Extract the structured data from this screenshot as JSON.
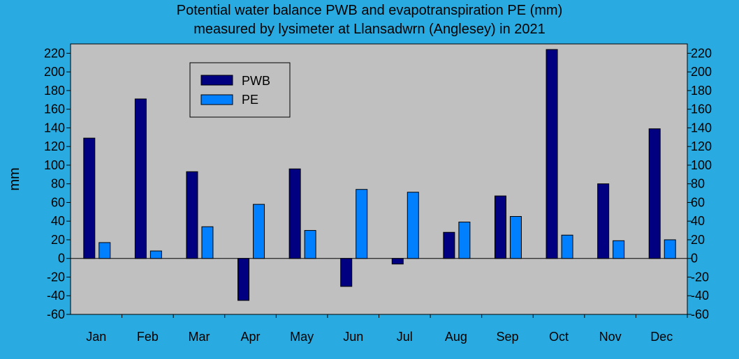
{
  "chart_data": {
    "type": "bar",
    "title_lines": [
      "Potential water balance PWB and evapotranspiration PE (mm)",
      "measured by lysimeter at Llansadwrn (Anglesey) in 2021"
    ],
    "xlabel": "",
    "ylabel": "mm",
    "ylim": [
      -60,
      230
    ],
    "yticks": [
      -60,
      -40,
      -20,
      0,
      20,
      40,
      60,
      80,
      100,
      120,
      140,
      160,
      180,
      200,
      220
    ],
    "categories": [
      "Jan",
      "Feb",
      "Mar",
      "Apr",
      "May",
      "Jun",
      "Jul",
      "Aug",
      "Sep",
      "Oct",
      "Nov",
      "Dec"
    ],
    "series": [
      {
        "name": "PWB",
        "color": "#000080",
        "values": [
          129,
          171,
          93,
          -45,
          96,
          -30,
          -6,
          28,
          67,
          224,
          80,
          139
        ]
      },
      {
        "name": "PE",
        "color": "#0080FF",
        "values": [
          17,
          8,
          34,
          58,
          30,
          74,
          71,
          39,
          45,
          25,
          19,
          20
        ]
      }
    ],
    "legend_position": "top-left",
    "grid": false,
    "secondary_y_axis": true
  },
  "colors": {
    "background": "#29ABE2",
    "plot_area": "#C0C0C0"
  }
}
